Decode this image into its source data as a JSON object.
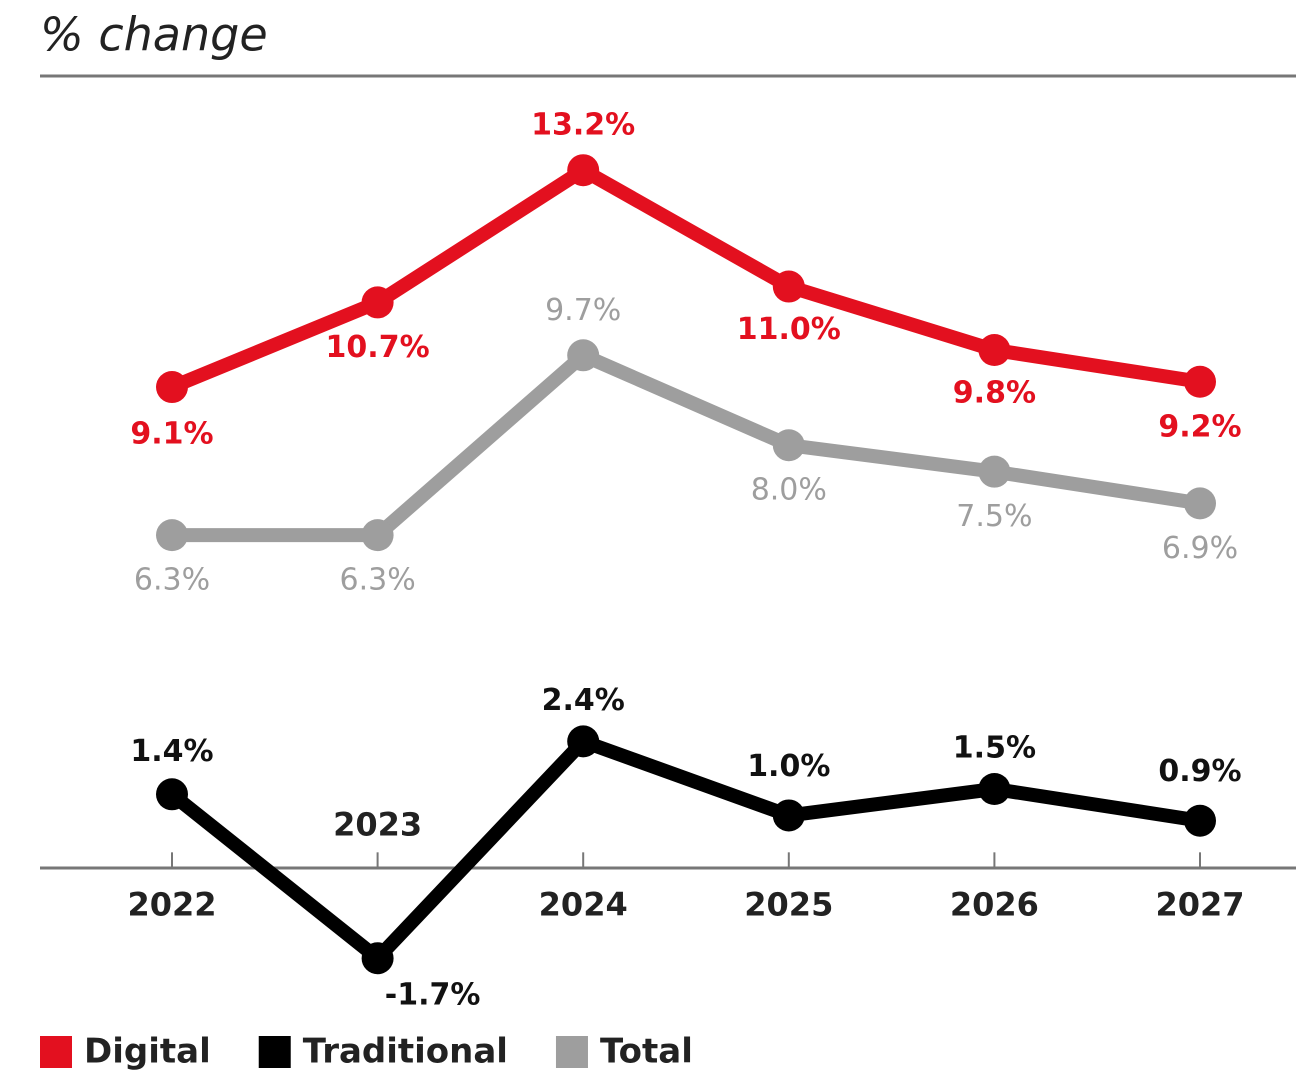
{
  "chart_data": {
    "type": "line",
    "subtitle": "% change",
    "categories": [
      "2022",
      "2023",
      "2024",
      "2025",
      "2026",
      "2027"
    ],
    "series": [
      {
        "name": "Digital",
        "color": "#e3101f",
        "values": [
          9.1,
          10.7,
          13.2,
          11.0,
          9.8,
          9.2
        ],
        "value_labels": [
          "9.1%",
          "10.7%",
          "13.2%",
          "11.0%",
          "9.8%",
          "9.2%"
        ]
      },
      {
        "name": "Traditional",
        "color": "#000000",
        "values": [
          1.4,
          -1.7,
          2.4,
          1.0,
          1.5,
          0.9
        ],
        "value_labels": [
          "1.4%",
          "-1.7%",
          "2.4%",
          "1.0%",
          "1.5%",
          "0.9%"
        ]
      },
      {
        "name": "Total",
        "color": "#9e9e9e",
        "values": [
          6.3,
          6.3,
          9.7,
          8.0,
          7.5,
          6.9
        ],
        "value_labels": [
          "6.3%",
          "6.3%",
          "9.7%",
          "8.0%",
          "7.5%",
          "6.9%"
        ]
      }
    ],
    "ylim": [
      -3,
      15
    ]
  }
}
